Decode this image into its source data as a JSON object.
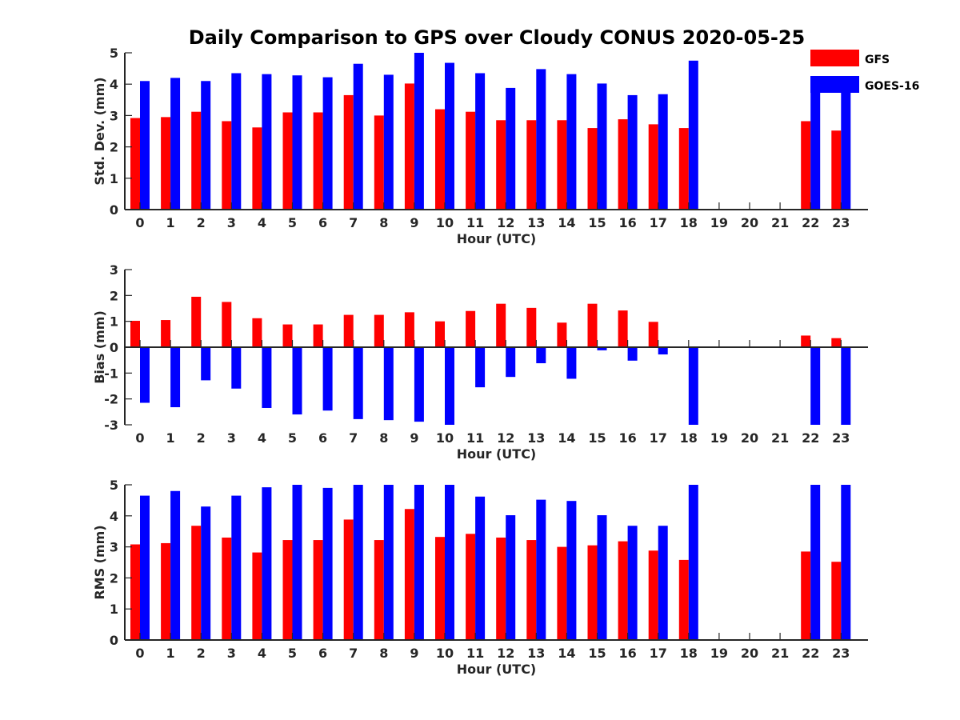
{
  "figure_title": "Daily Comparison to GPS over Cloudy CONUS 2020-05-25",
  "legend": [
    {
      "label": "GFS",
      "color": "#ff0000"
    },
    {
      "label": "GOES-16",
      "color": "#0000ff"
    }
  ],
  "chart_data": [
    {
      "type": "bar",
      "xlabel": "Hour (UTC)",
      "ylabel": "Std. Dev. (mm)",
      "ylim": [
        0,
        5
      ],
      "yticks": [
        0,
        1,
        2,
        3,
        4,
        5
      ],
      "categories": [
        "0",
        "1",
        "2",
        "3",
        "4",
        "5",
        "6",
        "7",
        "8",
        "9",
        "10",
        "11",
        "12",
        "13",
        "14",
        "15",
        "16",
        "17",
        "18",
        "19",
        "20",
        "21",
        "22",
        "23"
      ],
      "series": [
        {
          "name": "GFS",
          "color": "#ff0000",
          "values": [
            2.92,
            2.95,
            3.12,
            2.82,
            2.62,
            3.1,
            3.1,
            3.65,
            3.0,
            4.02,
            3.2,
            3.12,
            2.85,
            2.85,
            2.85,
            2.6,
            2.88,
            2.72,
            2.6,
            null,
            null,
            null,
            2.82,
            2.52
          ]
        },
        {
          "name": "GOES-16",
          "color": "#0000ff",
          "values": [
            4.1,
            4.2,
            4.1,
            4.35,
            4.32,
            4.28,
            4.22,
            4.65,
            4.3,
            5.0,
            4.68,
            4.35,
            3.88,
            4.48,
            4.32,
            4.02,
            3.65,
            3.68,
            4.75,
            null,
            null,
            null,
            3.85,
            3.85
          ]
        }
      ]
    },
    {
      "type": "bar",
      "xlabel": "Hour (UTC)",
      "ylabel": "Bias (mm)",
      "ylim": [
        -3,
        3
      ],
      "yticks": [
        -3,
        -2,
        -1,
        0,
        1,
        2,
        3
      ],
      "categories": [
        "0",
        "1",
        "2",
        "3",
        "4",
        "5",
        "6",
        "7",
        "8",
        "9",
        "10",
        "11",
        "12",
        "13",
        "14",
        "15",
        "16",
        "17",
        "18",
        "19",
        "20",
        "21",
        "22",
        "23"
      ],
      "series": [
        {
          "name": "GFS",
          "color": "#ff0000",
          "values": [
            1.02,
            1.05,
            1.95,
            1.75,
            1.12,
            0.88,
            0.88,
            1.25,
            1.25,
            1.35,
            1.0,
            1.4,
            1.68,
            1.52,
            0.95,
            1.68,
            1.42,
            0.98,
            null,
            null,
            null,
            null,
            0.45,
            0.35
          ]
        },
        {
          "name": "GOES-16",
          "color": "#0000ff",
          "values": [
            -2.15,
            -2.32,
            -1.28,
            -1.6,
            -2.35,
            -2.6,
            -2.45,
            -2.78,
            -2.82,
            -2.88,
            -3.0,
            -1.55,
            -1.15,
            -0.62,
            -1.22,
            -0.12,
            -0.52,
            -0.28,
            -3.0,
            null,
            null,
            null,
            -3.0,
            -3.0
          ]
        }
      ]
    },
    {
      "type": "bar",
      "xlabel": "Hour (UTC)",
      "ylabel": "RMS (mm)",
      "ylim": [
        0,
        5
      ],
      "yticks": [
        0,
        1,
        2,
        3,
        4,
        5
      ],
      "categories": [
        "0",
        "1",
        "2",
        "3",
        "4",
        "5",
        "6",
        "7",
        "8",
        "9",
        "10",
        "11",
        "12",
        "13",
        "14",
        "15",
        "16",
        "17",
        "18",
        "19",
        "20",
        "21",
        "22",
        "23"
      ],
      "series": [
        {
          "name": "GFS",
          "color": "#ff0000",
          "values": [
            3.08,
            3.12,
            3.68,
            3.3,
            2.82,
            3.22,
            3.22,
            3.88,
            3.22,
            4.22,
            3.32,
            3.42,
            3.3,
            3.22,
            3.0,
            3.05,
            3.18,
            2.88,
            2.58,
            null,
            null,
            null,
            2.85,
            2.52
          ]
        },
        {
          "name": "GOES-16",
          "color": "#0000ff",
          "values": [
            4.65,
            4.8,
            4.3,
            4.65,
            4.92,
            5.0,
            4.9,
            5.0,
            5.0,
            5.0,
            5.0,
            4.62,
            4.02,
            4.52,
            4.48,
            4.02,
            3.68,
            3.68,
            5.0,
            null,
            null,
            null,
            5.0,
            5.0
          ]
        }
      ]
    }
  ]
}
